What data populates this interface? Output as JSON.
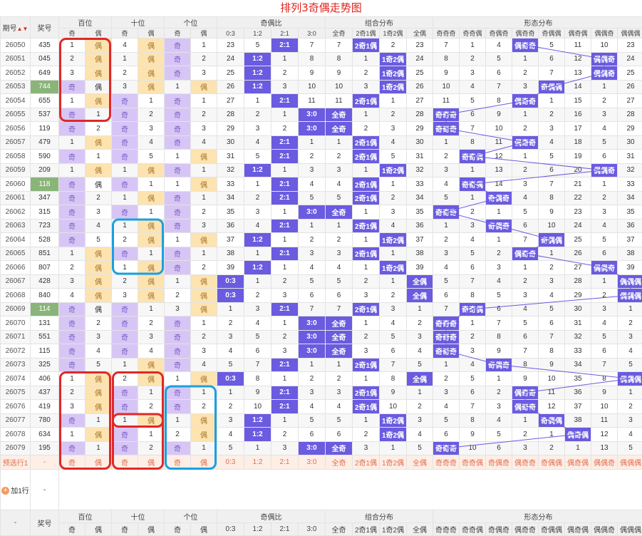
{
  "title": "排列3奇偶走势图",
  "header": {
    "issue_label": "期号",
    "award_label": "奖号",
    "groups": [
      "百位",
      "十位",
      "个位",
      "奇偶比",
      "组合分布",
      "形态分布"
    ],
    "pos_sub": [
      "奇",
      "偶"
    ],
    "ratio_sub": [
      "0:3",
      "1:2",
      "2:1",
      "3:0"
    ],
    "combo_sub": [
      "全奇",
      "2奇1偶",
      "1奇2偶",
      "全偶"
    ],
    "shape_sub": [
      "奇奇奇",
      "奇奇偶",
      "奇偶奇",
      "偶奇奇",
      "奇偶偶",
      "偶奇偶",
      "偶偶奇",
      "偶偶偶"
    ]
  },
  "rows": [
    {
      "issue": "26050",
      "award": "435",
      "b": [
        null,
        "偶",
        1
      ],
      "s": [
        null,
        "偶",
        4
      ],
      "g": [
        "奇",
        null,
        1
      ],
      "r": [
        23,
        5,
        "2:1",
        7
      ],
      "c": [
        7,
        "2奇1偶",
        2,
        23
      ],
      "f": [
        7,
        1,
        4,
        "偶奇奇",
        5,
        11,
        10,
        23
      ]
    },
    {
      "issue": "26051",
      "award": "045",
      "b": [
        null,
        "偶",
        2
      ],
      "s": [
        null,
        "偶",
        1
      ],
      "g": [
        "奇",
        null,
        2
      ],
      "r": [
        24,
        "1:2",
        1,
        8
      ],
      "c": [
        8,
        1,
        "1奇2偶",
        24
      ],
      "f": [
        8,
        2,
        5,
        1,
        6,
        12,
        "偶偶奇",
        24
      ]
    },
    {
      "issue": "26052",
      "award": "649",
      "b": [
        null,
        "偶",
        3
      ],
      "s": [
        null,
        "偶",
        2
      ],
      "g": [
        "奇",
        null,
        3
      ],
      "r": [
        25,
        "1:2",
        2,
        9
      ],
      "c": [
        9,
        2,
        "1奇2偶",
        25
      ],
      "f": [
        9,
        3,
        6,
        2,
        7,
        13,
        "偶偶奇",
        25
      ]
    },
    {
      "issue": "26053",
      "award": "744",
      "b": [
        null,
        "偶",
        "hl"
      ],
      "s": [
        null,
        "偶",
        3
      ],
      "g": [
        null,
        "偶",
        1
      ],
      "r": [
        26,
        "1:2",
        3,
        10
      ],
      "c": [
        10,
        3,
        "1奇2偶",
        26
      ],
      "f": [
        10,
        4,
        7,
        3,
        "奇偶偶",
        14,
        1,
        26
      ]
    },
    {
      "issue": "26054",
      "award": "655",
      "b": [
        null,
        "偶",
        1
      ],
      "s": [
        "奇",
        null,
        1
      ],
      "g": [
        "奇",
        null,
        1
      ],
      "r": [
        27,
        1,
        "2:1",
        11
      ],
      "c": [
        11,
        "2奇1偶",
        1,
        27
      ],
      "f": [
        11,
        5,
        8,
        "偶奇奇",
        1,
        15,
        2,
        27
      ]
    },
    {
      "issue": "26055",
      "award": "537",
      "b": [
        "奇",
        null,
        1
      ],
      "s": [
        "奇",
        null,
        2
      ],
      "g": [
        "奇",
        null,
        2
      ],
      "r": [
        28,
        2,
        1,
        "3:0"
      ],
      "c": [
        "全奇",
        1,
        2,
        28
      ],
      "f": [
        "奇奇奇",
        6,
        9,
        1,
        2,
        16,
        3,
        28
      ]
    },
    {
      "issue": "26056",
      "award": "119",
      "b": [
        "奇",
        null,
        2
      ],
      "s": [
        "奇",
        null,
        3
      ],
      "g": [
        "奇",
        null,
        3
      ],
      "r": [
        29,
        3,
        2,
        "3:0"
      ],
      "c": [
        "全奇",
        2,
        3,
        29
      ],
      "f": [
        "奇奇奇",
        7,
        10,
        2,
        3,
        17,
        4,
        29
      ]
    },
    {
      "issue": "26057",
      "award": "479",
      "b": [
        null,
        "偶",
        1
      ],
      "s": [
        "奇",
        null,
        4
      ],
      "g": [
        "奇",
        null,
        4
      ],
      "r": [
        30,
        4,
        "2:1",
        1
      ],
      "c": [
        1,
        "2奇1偶",
        4,
        30
      ],
      "f": [
        1,
        8,
        11,
        "偶奇奇",
        4,
        18,
        5,
        30
      ]
    },
    {
      "issue": "26058",
      "award": "590",
      "b": [
        "奇",
        null,
        1
      ],
      "s": [
        "奇",
        null,
        5
      ],
      "g": [
        null,
        "偶",
        1
      ],
      "r": [
        31,
        5,
        "2:1",
        2
      ],
      "c": [
        2,
        "2奇1偶",
        5,
        31
      ],
      "f": [
        2,
        "奇奇偶",
        12,
        1,
        5,
        19,
        6,
        31
      ]
    },
    {
      "issue": "26059",
      "award": "209",
      "b": [
        null,
        "偶",
        1
      ],
      "s": [
        null,
        "偶",
        1
      ],
      "g": [
        "奇",
        null,
        1
      ],
      "r": [
        32,
        "1:2",
        1,
        3
      ],
      "c": [
        3,
        1,
        "1奇2偶",
        32
      ],
      "f": [
        3,
        1,
        13,
        2,
        6,
        20,
        "偶偶奇",
        32
      ]
    },
    {
      "issue": "26060",
      "award": "118",
      "b": [
        null,
        "偶",
        "hl"
      ],
      "s": [
        "奇",
        null,
        1
      ],
      "g": [
        null,
        "偶",
        1
      ],
      "r": [
        33,
        1,
        "2:1",
        4
      ],
      "c": [
        4,
        "2奇1偶",
        1,
        33
      ],
      "f": [
        4,
        "奇奇偶",
        14,
        3,
        7,
        21,
        1,
        33
      ]
    },
    {
      "issue": "26061",
      "award": "347",
      "b": [
        "奇",
        null,
        2
      ],
      "s": [
        null,
        "偶",
        1
      ],
      "g": [
        "奇",
        null,
        1
      ],
      "r": [
        34,
        2,
        "2:1",
        5
      ],
      "c": [
        5,
        "2奇1偶",
        2,
        34
      ],
      "f": [
        5,
        1,
        "奇偶奇",
        4,
        8,
        22,
        2,
        34
      ]
    },
    {
      "issue": "26062",
      "award": "315",
      "b": [
        "奇",
        null,
        3
      ],
      "s": [
        "奇",
        null,
        1
      ],
      "g": [
        "奇",
        null,
        2
      ],
      "r": [
        35,
        3,
        1,
        "3:0"
      ],
      "c": [
        "全奇",
        1,
        3,
        35
      ],
      "f": [
        "奇奇奇",
        2,
        1,
        5,
        9,
        23,
        3,
        35
      ]
    },
    {
      "issue": "26063",
      "award": "723",
      "b": [
        "奇",
        null,
        4
      ],
      "s": [
        null,
        "偶",
        1
      ],
      "g": [
        "奇",
        null,
        3
      ],
      "r": [
        36,
        4,
        "2:1",
        1
      ],
      "c": [
        1,
        "2奇1偶",
        4,
        36
      ],
      "f": [
        1,
        3,
        "奇偶奇",
        6,
        10,
        24,
        4,
        36
      ]
    },
    {
      "issue": "26064",
      "award": "528",
      "b": [
        "奇",
        null,
        5
      ],
      "s": [
        null,
        "偶",
        2
      ],
      "g": [
        null,
        "偶",
        1
      ],
      "r": [
        37,
        "1:2",
        1,
        2
      ],
      "c": [
        2,
        1,
        "1奇2偶",
        37
      ],
      "f": [
        2,
        4,
        1,
        7,
        "奇偶偶",
        25,
        5,
        37
      ]
    },
    {
      "issue": "26065",
      "award": "851",
      "b": [
        null,
        "偶",
        1
      ],
      "s": [
        "奇",
        null,
        1
      ],
      "g": [
        "奇",
        null,
        1
      ],
      "r": [
        38,
        1,
        "2:1",
        3
      ],
      "c": [
        3,
        "2奇1偶",
        1,
        38
      ],
      "f": [
        3,
        5,
        2,
        "偶奇奇",
        1,
        26,
        6,
        38
      ]
    },
    {
      "issue": "26066",
      "award": "807",
      "b": [
        null,
        "偶",
        2
      ],
      "s": [
        null,
        "偶",
        1
      ],
      "g": [
        "奇",
        null,
        2
      ],
      "r": [
        39,
        "1:2",
        1,
        4
      ],
      "c": [
        4,
        1,
        "1奇2偶",
        39
      ],
      "f": [
        4,
        6,
        3,
        1,
        2,
        27,
        "偶偶奇",
        39
      ]
    },
    {
      "issue": "26067",
      "award": "428",
      "b": [
        null,
        "偶",
        3
      ],
      "s": [
        null,
        "偶",
        2
      ],
      "g": [
        null,
        "偶",
        1
      ],
      "r": [
        "0:3",
        1,
        2,
        5
      ],
      "c": [
        5,
        2,
        1,
        "全偶"
      ],
      "f": [
        5,
        7,
        4,
        2,
        3,
        28,
        1,
        "偶偶偶"
      ]
    },
    {
      "issue": "26068",
      "award": "840",
      "b": [
        null,
        "偶",
        4
      ],
      "s": [
        null,
        "偶",
        3
      ],
      "g": [
        null,
        "偶",
        2
      ],
      "r": [
        "0:3",
        2,
        3,
        6
      ],
      "c": [
        6,
        3,
        2,
        "全偶"
      ],
      "f": [
        6,
        8,
        5,
        3,
        4,
        29,
        2,
        "偶偶偶"
      ]
    },
    {
      "issue": "26069",
      "award": "114",
      "b": [
        null,
        "偶",
        "hl"
      ],
      "s": [
        "奇",
        null,
        1
      ],
      "g": [
        null,
        "偶",
        3
      ],
      "r": [
        1,
        3,
        "2:1",
        7
      ],
      "c": [
        7,
        "2奇1偶",
        3,
        1
      ],
      "f": [
        7,
        "奇奇偶",
        6,
        4,
        5,
        30,
        3,
        1
      ]
    },
    {
      "issue": "26070",
      "award": "131",
      "b": [
        "奇",
        null,
        2
      ],
      "s": [
        "奇",
        null,
        2
      ],
      "g": [
        "奇",
        null,
        1
      ],
      "r": [
        2,
        4,
        1,
        "3:0"
      ],
      "c": [
        "全奇",
        1,
        4,
        2
      ],
      "f": [
        "奇奇奇",
        1,
        7,
        5,
        6,
        31,
        4,
        2
      ]
    },
    {
      "issue": "26071",
      "award": "551",
      "b": [
        "奇",
        null,
        3
      ],
      "s": [
        "奇",
        null,
        3
      ],
      "g": [
        "奇",
        null,
        2
      ],
      "r": [
        3,
        5,
        2,
        "3:0"
      ],
      "c": [
        "全奇",
        2,
        5,
        3
      ],
      "f": [
        "奇奇奇",
        2,
        8,
        6,
        7,
        32,
        5,
        3
      ]
    },
    {
      "issue": "26072",
      "award": "115",
      "b": [
        "奇",
        null,
        4
      ],
      "s": [
        "奇",
        null,
        4
      ],
      "g": [
        "奇",
        null,
        3
      ],
      "r": [
        4,
        6,
        3,
        "3:0"
      ],
      "c": [
        "全奇",
        3,
        6,
        4
      ],
      "f": [
        "奇奇奇",
        3,
        9,
        7,
        8,
        33,
        6,
        4
      ]
    },
    {
      "issue": "26073",
      "award": "325",
      "b": [
        "奇",
        null,
        5
      ],
      "s": [
        null,
        "偶",
        1
      ],
      "g": [
        "奇",
        null,
        4
      ],
      "r": [
        5,
        7,
        "2:1",
        1
      ],
      "c": [
        1,
        "2奇1偶",
        7,
        5
      ],
      "f": [
        1,
        4,
        "奇偶奇",
        8,
        9,
        34,
        7,
        5
      ]
    },
    {
      "issue": "26074",
      "award": "406",
      "b": [
        null,
        "偶",
        1
      ],
      "s": [
        null,
        "偶",
        2
      ],
      "g": [
        null,
        "偶",
        1
      ],
      "r": [
        "0:3",
        8,
        1,
        2
      ],
      "c": [
        2,
        1,
        8,
        "全偶"
      ],
      "f": [
        2,
        5,
        1,
        9,
        10,
        35,
        8,
        "偶偶偶"
      ]
    },
    {
      "issue": "26075",
      "award": "437",
      "b": [
        null,
        "偶",
        2
      ],
      "s": [
        "奇",
        null,
        1
      ],
      "g": [
        "奇",
        null,
        1
      ],
      "r": [
        1,
        9,
        "2:1",
        3
      ],
      "c": [
        3,
        "2奇1偶",
        9,
        1
      ],
      "f": [
        3,
        6,
        2,
        "偶奇奇",
        11,
        36,
        9,
        1
      ]
    },
    {
      "issue": "26076",
      "award": "419",
      "b": [
        null,
        "偶",
        3
      ],
      "s": [
        "奇",
        null,
        2
      ],
      "g": [
        "奇",
        null,
        2
      ],
      "r": [
        2,
        10,
        "2:1",
        4
      ],
      "c": [
        4,
        "2奇1偶",
        10,
        2
      ],
      "f": [
        4,
        7,
        3,
        "偶奇奇",
        12,
        37,
        10,
        2
      ]
    },
    {
      "issue": "26077",
      "award": "780",
      "b": [
        "奇",
        null,
        1
      ],
      "s": [
        null,
        "偶",
        1
      ],
      "g": [
        null,
        "偶",
        1
      ],
      "r": [
        3,
        "1:2",
        1,
        5
      ],
      "c": [
        5,
        1,
        "1奇2偶",
        3
      ],
      "f": [
        5,
        8,
        4,
        1,
        "奇偶偶",
        38,
        11,
        3
      ]
    },
    {
      "issue": "26078",
      "award": "634",
      "b": [
        null,
        "偶",
        1
      ],
      "s": [
        "奇",
        null,
        1
      ],
      "g": [
        null,
        "偶",
        2
      ],
      "r": [
        4,
        "1:2",
        2,
        6
      ],
      "c": [
        6,
        2,
        "1奇2偶",
        4
      ],
      "f": [
        6,
        9,
        5,
        2,
        1,
        "偶奇偶",
        12,
        4
      ]
    },
    {
      "issue": "26079",
      "award": "195",
      "b": [
        "奇",
        null,
        1
      ],
      "s": [
        "奇",
        null,
        2
      ],
      "g": [
        "奇",
        null,
        1
      ],
      "r": [
        5,
        1,
        3,
        "3:0"
      ],
      "c": [
        "全奇",
        3,
        1,
        5
      ],
      "f": [
        "奇奇奇",
        10,
        6,
        3,
        2,
        1,
        13,
        5
      ]
    }
  ],
  "preselect": {
    "label": "预选行1",
    "dash": "-",
    "b": [
      "奇",
      "偶"
    ],
    "s": [
      "奇",
      "偶"
    ],
    "g": [
      "奇",
      "偶"
    ],
    "r": [
      "0:3",
      "1:2",
      "2:1",
      "3:0"
    ],
    "c": [
      "全奇",
      "2奇1偶",
      "1奇2偶",
      "全偶"
    ],
    "f": [
      "奇奇奇",
      "奇奇偶",
      "奇偶奇",
      "偶奇奇",
      "奇偶偶",
      "偶奇偶",
      "偶偶奇",
      "偶偶偶"
    ]
  },
  "add_row": {
    "label": "加1行",
    "dash": "-"
  },
  "footer": {
    "dash": "-"
  }
}
